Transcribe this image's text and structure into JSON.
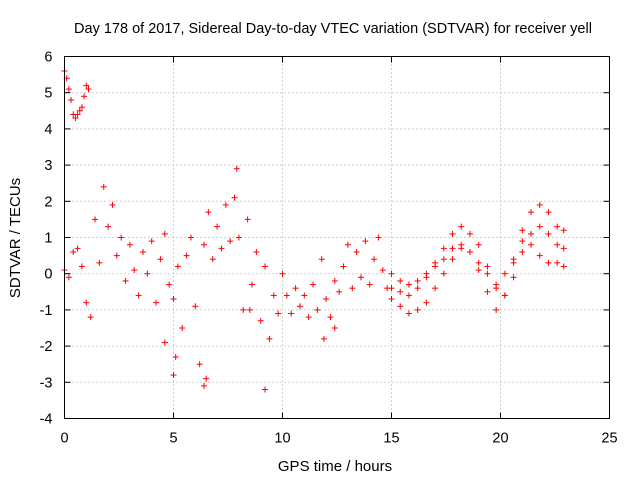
{
  "chart_data": {
    "type": "scatter",
    "title": "Day 178 of 2017, Sidereal Day-to-day VTEC variation (SDTVAR) for receiver yell",
    "xlabel": "GPS time / hours",
    "ylabel": "SDTVAR / TECUs",
    "xlim": [
      0,
      25
    ],
    "ylim": [
      -4,
      6
    ],
    "xticks": [
      0,
      5,
      10,
      15,
      20,
      25
    ],
    "yticks": [
      -4,
      -3,
      -2,
      -1,
      0,
      1,
      2,
      3,
      4,
      5,
      6
    ],
    "grid": true,
    "marker": "+",
    "color": "#ff0000",
    "series": [
      {
        "name": "SDTVAR",
        "x": [
          0.0,
          0.1,
          0.2,
          0.3,
          0.4,
          0.5,
          0.6,
          0.7,
          0.8,
          0.9,
          1.0,
          1.1,
          0.0,
          0.2,
          0.4,
          0.6,
          0.8,
          1.0,
          1.2,
          1.4,
          1.6,
          1.8,
          2.0,
          2.2,
          2.4,
          2.6,
          2.8,
          3.0,
          3.2,
          3.4,
          3.6,
          3.8,
          4.0,
          4.2,
          4.4,
          4.6,
          4.8,
          5.0,
          5.2,
          5.4,
          5.6,
          5.8,
          6.0,
          6.2,
          6.4,
          6.6,
          6.8,
          7.0,
          7.2,
          7.4,
          7.6,
          7.8,
          8.0,
          8.2,
          8.4,
          8.6,
          8.8,
          9.0,
          9.2,
          9.4,
          9.6,
          9.8,
          10.0,
          10.2,
          10.4,
          10.6,
          10.8,
          11.0,
          11.2,
          11.4,
          11.6,
          11.8,
          12.0,
          12.2,
          12.4,
          12.6,
          12.8,
          13.0,
          13.2,
          13.4,
          13.6,
          13.8,
          14.0,
          14.2,
          14.4,
          14.6,
          14.8,
          15.0,
          15.4,
          15.8,
          16.2,
          16.6,
          17.0,
          17.4,
          17.8,
          18.2,
          18.6,
          19.0,
          19.4,
          19.8,
          20.2,
          20.6,
          21.0,
          21.4,
          21.8,
          22.2,
          22.6,
          22.9,
          15.0,
          15.4,
          15.8,
          16.2,
          16.6,
          17.0,
          17.4,
          17.8,
          18.2,
          18.6,
          19.0,
          19.4,
          19.8,
          20.2,
          20.6,
          21.0,
          21.4,
          21.8,
          22.2,
          22.6,
          22.9,
          15.0,
          15.4,
          15.8,
          16.2,
          16.6,
          17.0,
          17.4,
          17.8,
          18.2,
          18.6,
          19.0,
          19.4,
          19.8,
          20.2,
          20.6,
          21.0,
          21.4,
          21.8,
          22.2,
          22.6,
          22.9,
          5.0,
          6.4,
          6.5,
          7.9,
          9.2,
          5.1,
          11.9,
          8.5,
          4.6,
          12.4
        ],
        "y": [
          5.6,
          5.4,
          5.1,
          4.8,
          4.4,
          4.3,
          4.4,
          4.5,
          4.6,
          4.9,
          5.2,
          5.1,
          0.1,
          -0.1,
          0.6,
          0.7,
          0.2,
          -0.8,
          -1.2,
          1.5,
          0.3,
          2.4,
          1.3,
          1.9,
          0.5,
          1.0,
          -0.2,
          0.8,
          0.1,
          -0.6,
          0.6,
          0.0,
          0.9,
          -0.8,
          0.4,
          1.1,
          -0.3,
          -0.7,
          0.2,
          -1.5,
          0.5,
          1.0,
          -0.9,
          -2.5,
          0.8,
          1.7,
          0.4,
          1.3,
          0.7,
          1.9,
          0.9,
          2.1,
          1.0,
          -1.0,
          1.5,
          -0.3,
          0.6,
          -1.3,
          0.2,
          -1.8,
          -0.6,
          -1.1,
          0.0,
          -0.6,
          -1.1,
          -0.4,
          -0.9,
          -0.6,
          -1.2,
          -0.3,
          -1.0,
          0.4,
          -0.7,
          -1.2,
          -0.2,
          -0.5,
          0.2,
          0.8,
          -0.4,
          0.6,
          -0.1,
          0.9,
          -0.3,
          0.4,
          1.0,
          0.1,
          -0.4,
          -0.7,
          -0.9,
          -1.1,
          -1.0,
          -0.8,
          -0.4,
          0.0,
          0.4,
          0.7,
          0.6,
          0.1,
          -0.5,
          -1.0,
          -0.6,
          0.3,
          1.2,
          1.7,
          1.9,
          1.7,
          1.3,
          1.2,
          -0.4,
          -0.5,
          -0.6,
          -0.4,
          -0.1,
          0.3,
          0.7,
          1.1,
          1.3,
          1.1,
          0.8,
          0.2,
          -0.4,
          -0.6,
          -0.1,
          0.6,
          1.1,
          1.3,
          1.1,
          0.8,
          0.7,
          0.0,
          -0.2,
          -0.3,
          -0.2,
          0.0,
          0.2,
          0.4,
          0.7,
          0.8,
          0.6,
          0.3,
          0.0,
          -0.3,
          0.0,
          0.4,
          0.9,
          0.8,
          0.5,
          0.3,
          0.3,
          0.2,
          -2.8,
          -3.1,
          -2.9,
          2.9,
          -3.2,
          -2.3,
          -1.8,
          -1.0,
          -1.9,
          -1.5
        ]
      }
    ]
  }
}
